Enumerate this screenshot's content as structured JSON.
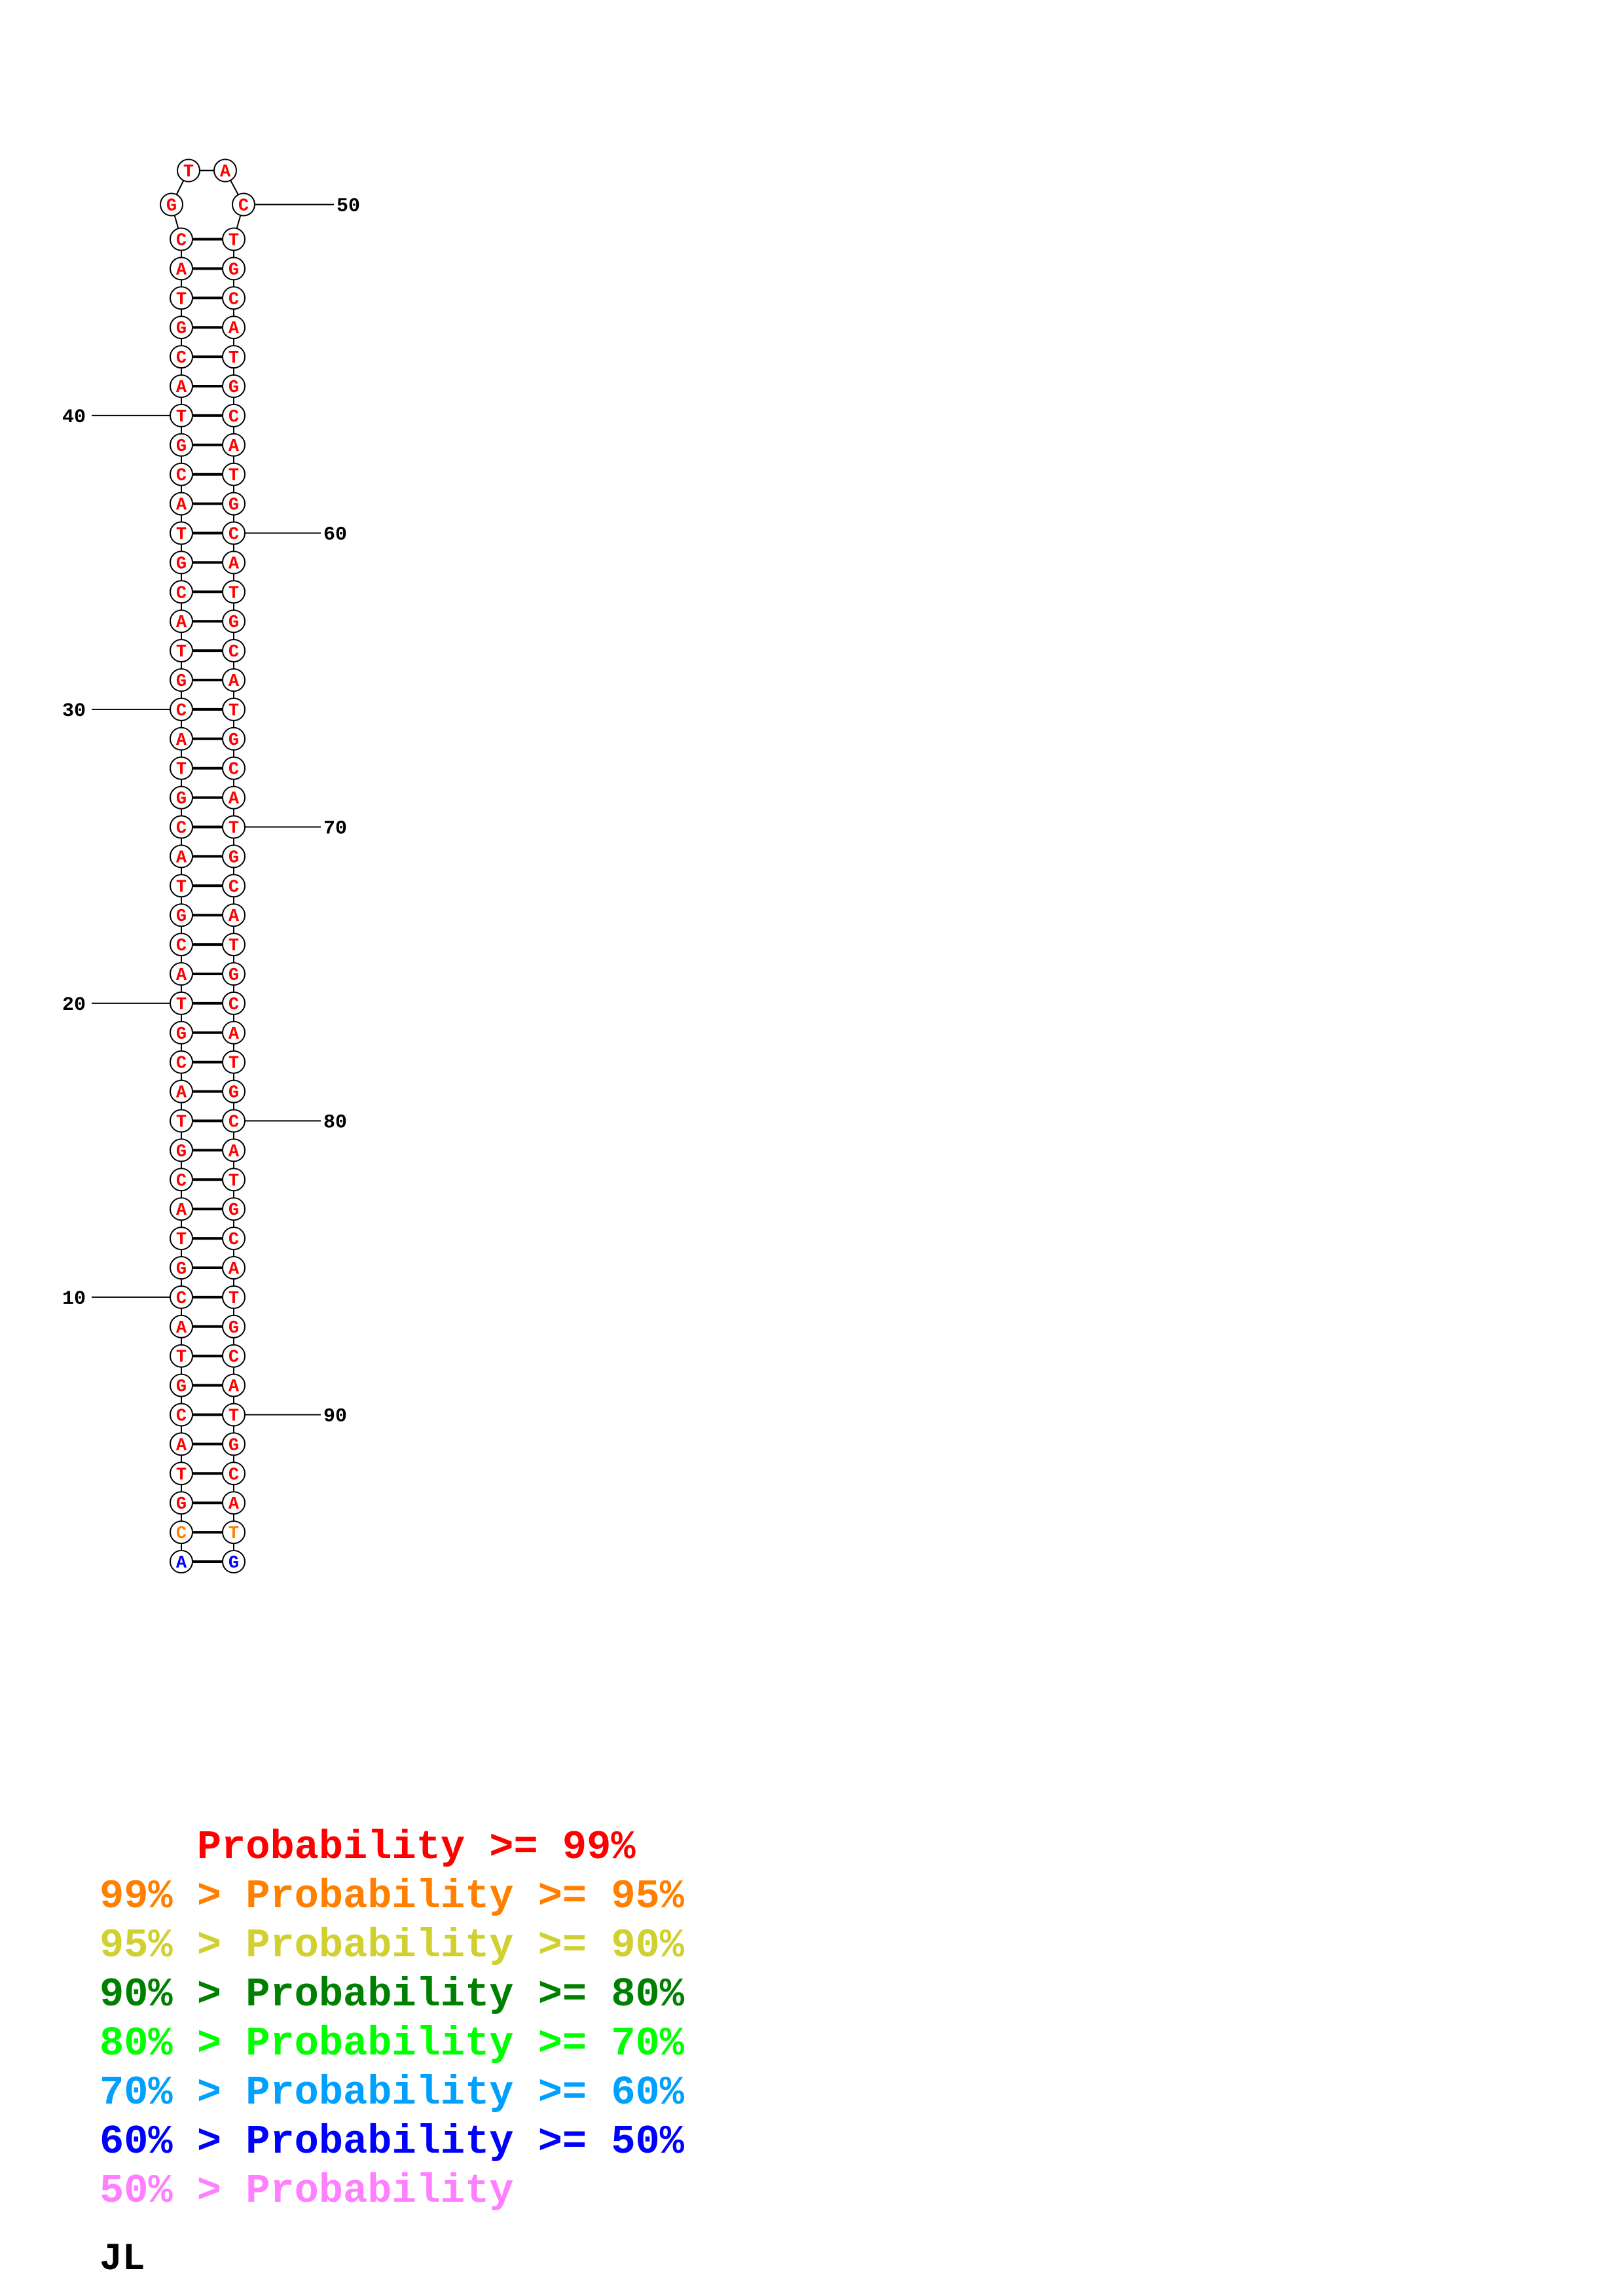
{
  "structure": {
    "bases_5prime": [
      "A",
      "C",
      "G",
      "T",
      "A",
      "C",
      "G",
      "T",
      "A",
      "C",
      "G",
      "T",
      "A",
      "C",
      "G",
      "T",
      "A",
      "C",
      "G",
      "T",
      "A",
      "C",
      "G",
      "T",
      "A",
      "C",
      "G",
      "T",
      "A",
      "C",
      "G",
      "T",
      "A",
      "C",
      "G",
      "T",
      "A",
      "C",
      "G",
      "T",
      "A",
      "C",
      "G",
      "T",
      "A",
      "C"
    ],
    "loop_bases": [
      "G",
      "T",
      "A",
      "C"
    ],
    "bases_3prime": [
      "G",
      "T",
      "A",
      "C",
      "G",
      "T",
      "A",
      "C",
      "G",
      "T",
      "A",
      "C",
      "G",
      "T",
      "A",
      "C",
      "G",
      "T",
      "A",
      "C",
      "G",
      "T",
      "A",
      "C",
      "G",
      "T",
      "A",
      "C",
      "G",
      "T",
      "A",
      "C",
      "G",
      "T",
      "A",
      "C",
      "G",
      "T",
      "A",
      "C",
      "G",
      "T",
      "A",
      "C",
      "G",
      "T"
    ],
    "pair_probability_class": [
      "60-50",
      "99-95",
      "99",
      "99",
      "99",
      "99",
      "99",
      "99",
      "99",
      "99",
      "99",
      "99",
      "99",
      "99",
      "99",
      "99",
      "99",
      "99",
      "99",
      "99",
      "99",
      "99",
      "99",
      "99",
      "99",
      "99",
      "99",
      "99",
      "99",
      "99",
      "99",
      "99",
      "99",
      "99",
      "99",
      "99",
      "99",
      "99",
      "99",
      "99",
      "99",
      "99",
      "99",
      "99",
      "99",
      "99"
    ],
    "position_labels": [
      {
        "text": "10",
        "row": 9,
        "side": "left"
      },
      {
        "text": "20",
        "row": 19,
        "side": "left"
      },
      {
        "text": "30",
        "row": 29,
        "side": "left"
      },
      {
        "text": "40",
        "row": 39,
        "side": "left"
      },
      {
        "text": "50",
        "loop_index": 3,
        "side": "right"
      },
      {
        "text": "60",
        "row": 35,
        "side": "right"
      },
      {
        "text": "70",
        "row": 25,
        "side": "right"
      },
      {
        "text": "80",
        "row": 15,
        "side": "right"
      },
      {
        "text": "90",
        "row": 5,
        "side": "right"
      }
    ]
  },
  "probability_colors": {
    "99": "#ff0000",
    "99-95": "#ff8000",
    "95-90": "#d0d030",
    "90-80": "#008000",
    "80-70": "#00ff00",
    "70-60": "#00a0ff",
    "60-50": "#0000ff",
    "50": "#ff80ff"
  },
  "legend": [
    {
      "text": "    Probability >= 99%",
      "color": "#ff0000"
    },
    {
      "text": "99% > Probability >= 95%",
      "color": "#ff8000"
    },
    {
      "text": "95% > Probability >= 90%",
      "color": "#d0d030"
    },
    {
      "text": "90% > Probability >= 80%",
      "color": "#008000"
    },
    {
      "text": "80% > Probability >= 70%",
      "color": "#00ff00"
    },
    {
      "text": "70% > Probability >= 60%",
      "color": "#00a0ff"
    },
    {
      "text": "60% > Probability >= 50%",
      "color": "#0000ff"
    },
    {
      "text": "50% > Probability",
      "color": "#ff80ff"
    }
  ],
  "author": "JL"
}
